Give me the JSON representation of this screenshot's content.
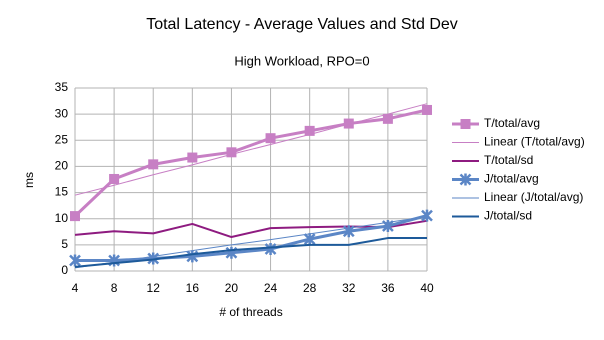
{
  "chart_data": {
    "type": "line",
    "title": "Total Latency - Average Values and Std Dev",
    "subtitle": "High Workload, RPO=0",
    "x_label": "# of threads",
    "y_label": "ms",
    "x": [
      4,
      8,
      12,
      16,
      20,
      24,
      28,
      32,
      36,
      40
    ],
    "xlim": [
      4,
      40
    ],
    "xticks": [
      4,
      8,
      12,
      16,
      20,
      24,
      28,
      32,
      36,
      40
    ],
    "ylim": [
      0,
      35
    ],
    "yticks": [
      0,
      5,
      10,
      15,
      20,
      25,
      30,
      35
    ],
    "grid": true,
    "legend": "right",
    "series": [
      {
        "name": "T/total/avg",
        "color": "#c77fc4",
        "width": 3,
        "marker": "square",
        "values": [
          10.5,
          17.6,
          20.4,
          21.7,
          22.7,
          25.4,
          26.8,
          28.2,
          29.1,
          30.8
        ]
      },
      {
        "name": "Linear (T/total/avg)",
        "color": "#c77fc4",
        "width": 1,
        "marker": "none",
        "values": [
          14.5,
          16.4,
          18.4,
          20.3,
          22.3,
          24.2,
          26.1,
          28.1,
          30.0,
          32.0
        ]
      },
      {
        "name": "T/total/sd",
        "color": "#8e1b80",
        "width": 2,
        "marker": "none",
        "values": [
          6.9,
          7.6,
          7.2,
          9.0,
          6.5,
          8.2,
          8.4,
          8.5,
          8.4,
          9.6
        ]
      },
      {
        "name": "J/total/avg",
        "color": "#5b86c6",
        "width": 3,
        "marker": "star",
        "values": [
          2.0,
          2.0,
          2.4,
          2.8,
          3.5,
          4.2,
          6.1,
          7.6,
          8.6,
          10.6
        ]
      },
      {
        "name": "Linear (J/total/avg)",
        "color": "#5b86c6",
        "width": 1,
        "marker": "none",
        "values": [
          0.6,
          1.7,
          2.8,
          3.9,
          5.0,
          6.0,
          7.1,
          8.2,
          9.3,
          10.4
        ]
      },
      {
        "name": "J/total/sd",
        "color": "#1d5a9a",
        "width": 2,
        "marker": "none",
        "values": [
          0.8,
          1.5,
          2.2,
          3.2,
          4.0,
          4.5,
          5.0,
          5.0,
          6.3,
          6.3
        ]
      }
    ]
  }
}
